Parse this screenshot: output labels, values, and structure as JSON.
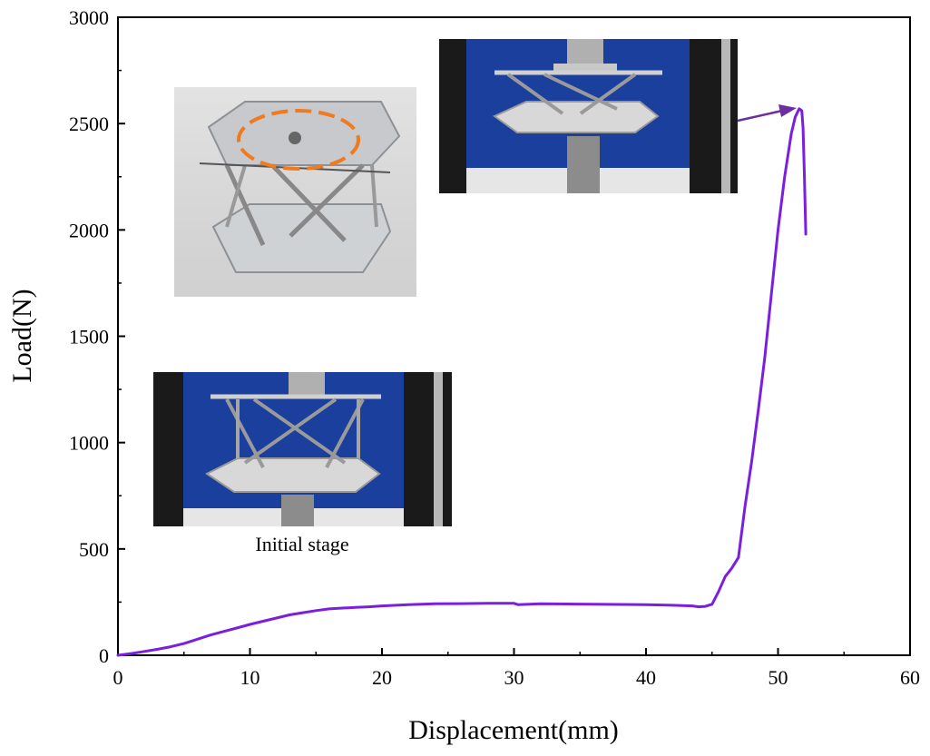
{
  "chart_data": {
    "type": "line",
    "title": "",
    "xlabel": "Displacement(mm)",
    "ylabel": "Load(N)",
    "xlim": [
      0,
      60
    ],
    "ylim": [
      0,
      3000
    ],
    "xticks": [
      0,
      10,
      20,
      30,
      40,
      50,
      60
    ],
    "yticks": [
      0,
      500,
      1000,
      1500,
      2000,
      2500,
      3000
    ],
    "grid": false,
    "legend": "none",
    "line_color": "#7a1fe0",
    "series": [
      {
        "x": [
          0,
          1,
          2,
          3,
          4,
          5,
          6,
          7,
          8,
          9,
          10,
          11,
          12,
          13,
          14,
          15,
          16,
          17,
          18,
          19,
          20,
          22,
          24,
          26,
          28,
          30,
          30.3,
          32,
          34,
          36,
          38,
          40,
          42,
          43.5,
          44,
          44.5,
          45,
          45.5,
          46,
          46.5,
          47,
          47.5,
          48,
          48.5,
          49,
          49.5,
          50,
          50.5,
          51,
          51.3,
          51.6,
          51.8,
          51.9,
          52.0,
          52.1
        ],
        "y": [
          0,
          8,
          18,
          28,
          40,
          55,
          75,
          95,
          112,
          128,
          145,
          160,
          175,
          190,
          200,
          210,
          218,
          222,
          225,
          228,
          232,
          238,
          242,
          243,
          244,
          244,
          238,
          242,
          241,
          240,
          239,
          238,
          235,
          232,
          228,
          230,
          240,
          300,
          370,
          410,
          460,
          700,
          910,
          1150,
          1400,
          1700,
          2000,
          2250,
          2450,
          2530,
          2570,
          2560,
          2480,
          2250,
          1980
        ]
      }
    ],
    "annotations": [
      {
        "text": "Initial stage"
      }
    ]
  }
}
